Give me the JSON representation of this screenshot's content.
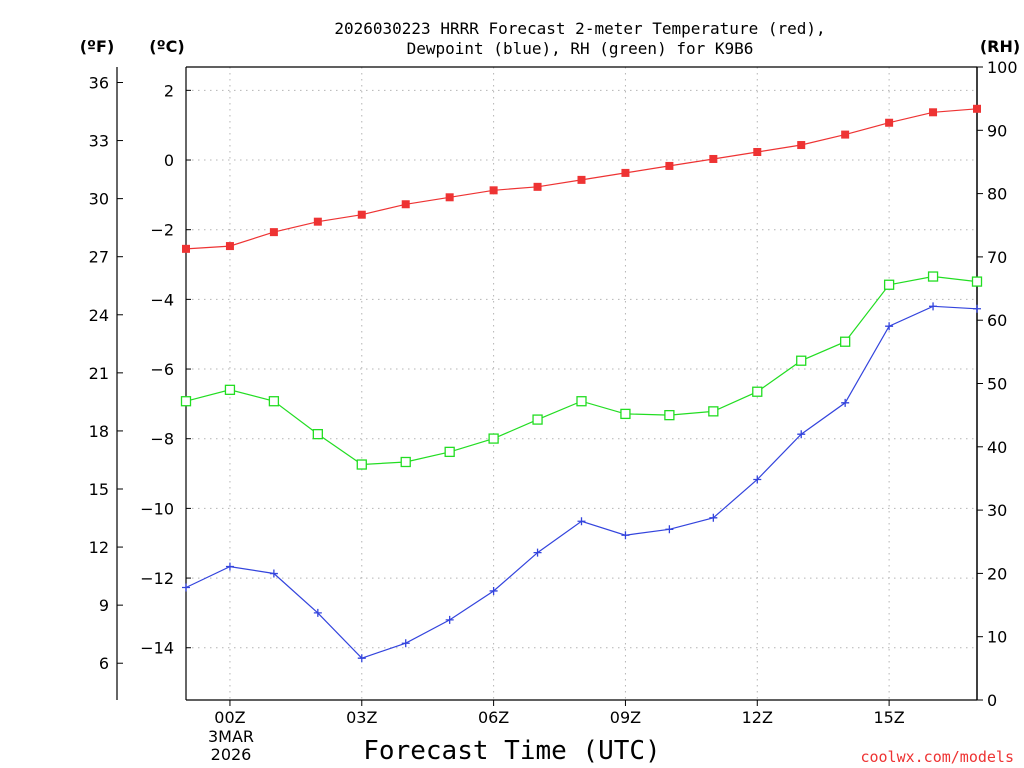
{
  "chart_data": {
    "type": "line",
    "title": [
      "2026030223 HRRR Forecast 2-meter Temperature (red),",
      "Dewpoint (blue), RH (green) for K9B6"
    ],
    "xlabel": "Forecast Time (UTC)",
    "x_hours": [
      -1,
      0,
      1,
      2,
      3,
      4,
      5,
      6,
      7,
      8,
      9,
      10,
      11,
      12,
      13,
      14,
      15,
      16,
      17
    ],
    "x_range": [
      -1,
      17
    ],
    "x_ticks": [
      {
        "hour": 0,
        "label": "00Z"
      },
      {
        "hour": 3,
        "label": "03Z"
      },
      {
        "hour": 6,
        "label": "06Z"
      },
      {
        "hour": 9,
        "label": "09Z"
      },
      {
        "hour": 12,
        "label": "12Z"
      },
      {
        "hour": 15,
        "label": "15Z"
      }
    ],
    "date_label": [
      "3MAR",
      "2026"
    ],
    "axes": {
      "fahrenheit": {
        "unit_label": "(ºF)",
        "range": [
          4.1,
          36.8
        ],
        "ticks": [
          6,
          9,
          12,
          15,
          18,
          21,
          24,
          27,
          30,
          33,
          36
        ]
      },
      "celsius": {
        "unit_label": "(ºC)",
        "range": [
          -15.5,
          2.67
        ],
        "ticks": [
          2,
          0,
          -2,
          -4,
          -6,
          -8,
          -10,
          -12,
          -14
        ]
      },
      "rh": {
        "unit_label": "(RH)",
        "range": [
          0,
          100
        ],
        "ticks": [
          0,
          10,
          20,
          30,
          40,
          50,
          60,
          70,
          80,
          90,
          100
        ]
      }
    },
    "series": [
      {
        "name": "2-meter Temperature",
        "color": "#ee3333",
        "marker": "filled-square",
        "axis": "celsius",
        "values": [
          -2.55,
          -2.47,
          -2.07,
          -1.77,
          -1.57,
          -1.27,
          -1.07,
          -0.87,
          -0.77,
          -0.57,
          -0.37,
          -0.17,
          0.03,
          0.23,
          0.43,
          0.73,
          1.07,
          1.37,
          1.47
        ]
      },
      {
        "name": "Dewpoint",
        "color": "#3344dd",
        "marker": "plus",
        "axis": "celsius",
        "values": [
          -12.27,
          -11.67,
          -11.87,
          -13.0,
          -14.3,
          -13.87,
          -13.2,
          -12.37,
          -11.27,
          -10.37,
          -10.77,
          -10.6,
          -10.27,
          -9.17,
          -7.87,
          -6.97,
          -4.77,
          -4.2,
          -4.27
        ]
      },
      {
        "name": "RH",
        "color": "#22dd22",
        "marker": "open-square",
        "axis": "rh",
        "values": [
          47.2,
          49.0,
          47.2,
          42.0,
          37.2,
          37.6,
          39.2,
          41.3,
          44.3,
          47.2,
          45.2,
          45.0,
          45.6,
          48.7,
          53.6,
          56.6,
          65.6,
          66.9,
          66.1
        ]
      }
    ],
    "grid": true
  },
  "credit": "coolwx.com/models"
}
